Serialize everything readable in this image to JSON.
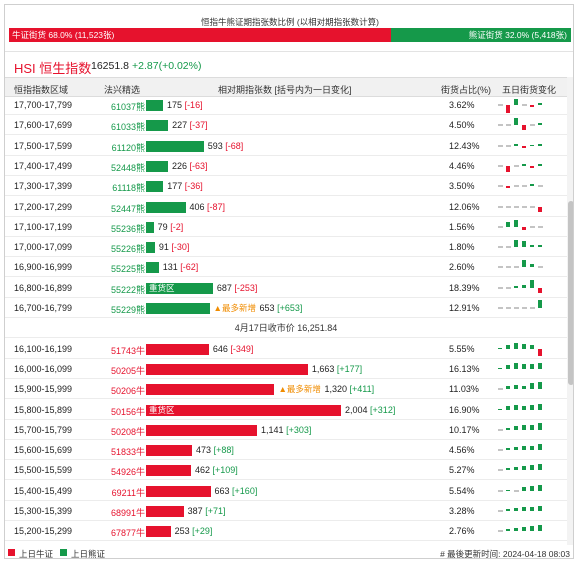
{
  "ratio": {
    "title": "恒指牛熊证期指张数比例 (以相对期指张数计算)",
    "bull_label": "牛证街货 68.0% (11,523张)",
    "bear_label": "熊证街货 32.0% (5,418张)",
    "bull_fraction": 0.68,
    "bull_color": "#e6122d",
    "bear_color": "#15994a"
  },
  "index": {
    "name": "HSI 恒生指数",
    "value": "16251.8",
    "change": "+2.87(+0.02%)"
  },
  "columns": {
    "range": "恒指指数区域",
    "code": "法兴精选",
    "contracts": "相对期指张数 [括号内为一日变化]",
    "pct": "街货占比(%)",
    "history": "五日街货变化"
  },
  "close_label": "4月17日收市价 16,251.84",
  "bear_rows": [
    {
      "range": "17,700-17,799",
      "code": "61037熊",
      "qty": "175",
      "delta": "[-16]",
      "value": 175,
      "pct": "3.62%",
      "spark": [
        0,
        -8,
        6,
        0,
        -2,
        2
      ]
    },
    {
      "range": "17,600-17,699",
      "code": "61033熊",
      "qty": "227",
      "delta": "[-37]",
      "value": 227,
      "pct": "4.50%",
      "spark": [
        0,
        0,
        7,
        -5,
        0,
        2
      ]
    },
    {
      "range": "17,500-17,599",
      "code": "61120熊",
      "qty": "593",
      "delta": "[-68]",
      "value": 593,
      "pct": "12.43%",
      "spark": [
        0,
        0,
        2,
        -2,
        1,
        2
      ]
    },
    {
      "range": "17,400-17,499",
      "code": "52448熊",
      "qty": "226",
      "delta": "[-63]",
      "value": 226,
      "pct": "4.46%",
      "spark": [
        0,
        -6,
        0,
        2,
        -2,
        2
      ]
    },
    {
      "range": "17,300-17,399",
      "code": "61118熊",
      "qty": "177",
      "delta": "[-36]",
      "value": 177,
      "pct": "3.50%",
      "spark": [
        0,
        -2,
        0,
        0,
        2,
        0
      ]
    },
    {
      "range": "17,200-17,299",
      "code": "52447熊",
      "qty": "406",
      "delta": "[-87]",
      "value": 406,
      "pct": "12.06%",
      "spark": [
        0,
        0,
        0,
        0,
        0,
        -5
      ]
    },
    {
      "range": "17,100-17,199",
      "code": "55236熊",
      "qty": "79",
      "delta": "[-2]",
      "value": 79,
      "pct": "1.56%",
      "spark": [
        0,
        5,
        7,
        -3,
        0,
        0
      ]
    },
    {
      "range": "17,000-17,099",
      "code": "55226熊",
      "qty": "91",
      "delta": "[-30]",
      "value": 91,
      "pct": "1.80%",
      "spark": [
        0,
        0,
        7,
        6,
        2,
        2
      ]
    },
    {
      "range": "16,900-16,999",
      "code": "55225熊",
      "qty": "131",
      "delta": "[-62]",
      "value": 131,
      "pct": "2.60%",
      "spark": [
        0,
        0,
        0,
        7,
        3,
        0
      ]
    },
    {
      "range": "16,800-16,899",
      "code": "55222熊",
      "qty": "687",
      "delta": "[-253]",
      "value": 687,
      "pct": "18.39%",
      "tag": "重货区",
      "spark": [
        0,
        0,
        2,
        3,
        8,
        -5
      ]
    },
    {
      "range": "16,700-16,799",
      "code": "55229熊",
      "qty": "653",
      "delta": "[+653]",
      "value": 653,
      "pct": "12.91%",
      "new": "▲最多新增",
      "spark": [
        0,
        0,
        0,
        0,
        0,
        8
      ]
    }
  ],
  "bull_rows": [
    {
      "range": "16,100-16,199",
      "code": "51743牛",
      "qty": "646",
      "delta": "[-349]",
      "value": 646,
      "pct": "5.55%",
      "spark": [
        1,
        4,
        6,
        5,
        4,
        -7
      ]
    },
    {
      "range": "16,000-16,099",
      "code": "50205牛",
      "qty": "1,663",
      "delta": "[+177]",
      "value": 1663,
      "pct": "16.13%",
      "spark": [
        1,
        4,
        6,
        5,
        5,
        6
      ]
    },
    {
      "range": "15,900-15,999",
      "code": "50206牛",
      "qty": "1,320",
      "delta": "[+411]",
      "value": 1320,
      "pct": "11.03%",
      "new": "▲最多新增",
      "spark": [
        0,
        3,
        4,
        3,
        6,
        7
      ]
    },
    {
      "range": "15,800-15,899",
      "code": "50156牛",
      "qty": "2,004",
      "delta": "[+312]",
      "value": 2004,
      "pct": "16.90%",
      "tag": "重货区",
      "spark": [
        1,
        4,
        5,
        4,
        5,
        6
      ]
    },
    {
      "range": "15,700-15,799",
      "code": "50208牛",
      "qty": "1,141",
      "delta": "[+303]",
      "value": 1141,
      "pct": "10.17%",
      "spark": [
        0,
        2,
        4,
        5,
        5,
        7
      ]
    },
    {
      "range": "15,600-15,699",
      "code": "51833牛",
      "qty": "473",
      "delta": "[+88]",
      "value": 473,
      "pct": "4.56%",
      "spark": [
        0,
        2,
        3,
        4,
        4,
        6
      ]
    },
    {
      "range": "15,500-15,599",
      "code": "54926牛",
      "qty": "462",
      "delta": "[+109]",
      "value": 462,
      "pct": "5.27%",
      "spark": [
        0,
        2,
        3,
        4,
        5,
        6
      ]
    },
    {
      "range": "15,400-15,499",
      "code": "69211牛",
      "qty": "663",
      "delta": "[+160]",
      "value": 663,
      "pct": "5.54%",
      "spark": [
        0,
        1,
        0,
        4,
        5,
        6
      ]
    },
    {
      "range": "15,300-15,399",
      "code": "68991牛",
      "qty": "387",
      "delta": "[+71]",
      "value": 387,
      "pct": "3.28%",
      "spark": [
        0,
        2,
        3,
        4,
        4,
        5
      ]
    },
    {
      "range": "15,200-15,299",
      "code": "67877牛",
      "qty": "253",
      "delta": "[+29]",
      "value": 253,
      "pct": "2.76%",
      "spark": [
        0,
        2,
        3,
        4,
        5,
        6
      ]
    }
  ],
  "footer": {
    "bull_legend": "上日牛证",
    "bear_legend": "上日熊证",
    "updated": "# 最後更新时间: 2024-04-18 08:03"
  }
}
